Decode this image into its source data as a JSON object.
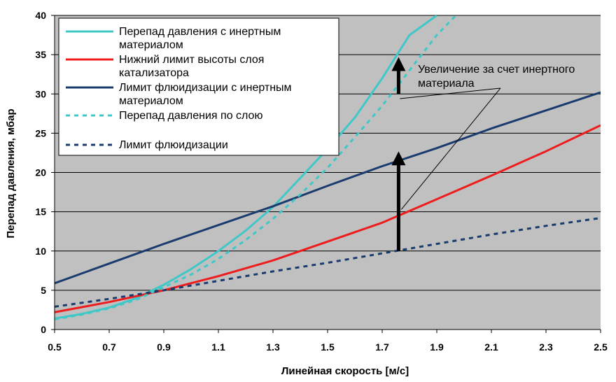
{
  "chart_data": {
    "type": "line",
    "title": "",
    "xlabel": "Линейная скорость [м/с]",
    "ylabel": "Перепад давления, мбар",
    "xlim": [
      0.5,
      2.5
    ],
    "ylim": [
      0,
      40
    ],
    "xticks": [
      0.5,
      0.7,
      0.9,
      1.1,
      1.3,
      1.5,
      1.7,
      1.9,
      2.1,
      2.3,
      2.5
    ],
    "xtick_labels": [
      "0.5",
      "0.7",
      "0.9",
      "1.1",
      "1.3",
      "1.5",
      "1.7",
      "1.9",
      "2.1",
      "2.3",
      "2.5"
    ],
    "yticks": [
      0,
      5,
      10,
      15,
      20,
      25,
      30,
      35,
      40
    ],
    "ytick_labels": [
      "0",
      "5",
      "10",
      "15",
      "20",
      "25",
      "30",
      "35",
      "40"
    ],
    "grid": "horizontal",
    "plot_background": "#c0c0c0",
    "legend_position": "top-left",
    "series": [
      {
        "name": "Перепад давления с инертным материалом",
        "legend_lines": [
          "Перепад давления с инертным",
          "материалом"
        ],
        "color": "#40c8c8",
        "dashed": false,
        "x": [
          0.5,
          0.6,
          0.7,
          0.8,
          0.9,
          1.0,
          1.1,
          1.2,
          1.3,
          1.4,
          1.5,
          1.6,
          1.7,
          1.8,
          1.9
        ],
        "y": [
          1.4,
          2.0,
          2.8,
          4.0,
          5.7,
          7.7,
          10.0,
          12.6,
          15.6,
          19.3,
          23.0,
          27.0,
          32.0,
          37.5,
          40.0
        ]
      },
      {
        "name": "Нижний лимит высоты слоя катализатора",
        "legend_lines": [
          "Нижний лимит высоты слоя",
          "катализатора"
        ],
        "color": "#ee1c1c",
        "dashed": false,
        "x": [
          0.5,
          0.7,
          0.9,
          1.1,
          1.3,
          1.5,
          1.7,
          1.9,
          2.1,
          2.3,
          2.5
        ],
        "y": [
          2.2,
          3.5,
          5.0,
          6.8,
          8.8,
          11.2,
          13.6,
          16.6,
          19.6,
          22.7,
          26.0
        ]
      },
      {
        "name": "Лимит флюидизации с инертным материалом",
        "legend_lines": [
          "Лимит флюидизации с инертным",
          "материалом"
        ],
        "color": "#1a3b6e",
        "dashed": false,
        "x": [
          0.5,
          0.7,
          0.9,
          1.1,
          1.3,
          1.5,
          1.7,
          1.9,
          2.1,
          2.3,
          2.5
        ],
        "y": [
          5.9,
          8.4,
          10.9,
          13.3,
          15.7,
          18.3,
          20.8,
          23.1,
          25.6,
          27.9,
          30.2
        ]
      },
      {
        "name": "Перепад давления по слою",
        "legend_lines": [
          "Перепад давления по слою"
        ],
        "color": "#40c8c8",
        "dashed": true,
        "x": [
          0.5,
          0.6,
          0.7,
          0.8,
          0.9,
          1.0,
          1.1,
          1.2,
          1.3,
          1.4,
          1.5,
          1.6,
          1.7,
          1.8,
          1.9,
          1.97
        ],
        "y": [
          1.3,
          1.9,
          2.7,
          3.8,
          5.4,
          7.0,
          9.0,
          11.4,
          14.1,
          17.2,
          20.6,
          24.5,
          28.5,
          33.0,
          37.5,
          40.0
        ]
      },
      {
        "name": "Лимит флюидизации",
        "legend_lines": [
          "Лимит флюидизации"
        ],
        "color": "#1a3b6e",
        "dashed": true,
        "x": [
          0.5,
          0.7,
          0.9,
          1.1,
          1.3,
          1.5,
          1.7,
          1.9,
          2.1,
          2.3,
          2.5
        ],
        "y": [
          2.9,
          3.9,
          5.0,
          6.2,
          7.4,
          8.5,
          9.7,
          10.9,
          12.1,
          13.2,
          14.2
        ]
      }
    ],
    "annotation": {
      "lines": [
        "Увеличение за счет инертного",
        "материала"
      ],
      "arrows": [
        {
          "x": 1.76,
          "y_from": 10.0,
          "y_to": 21.8
        },
        {
          "x": 1.76,
          "y_from": 30.0,
          "y_to": 33.8
        }
      ]
    }
  }
}
